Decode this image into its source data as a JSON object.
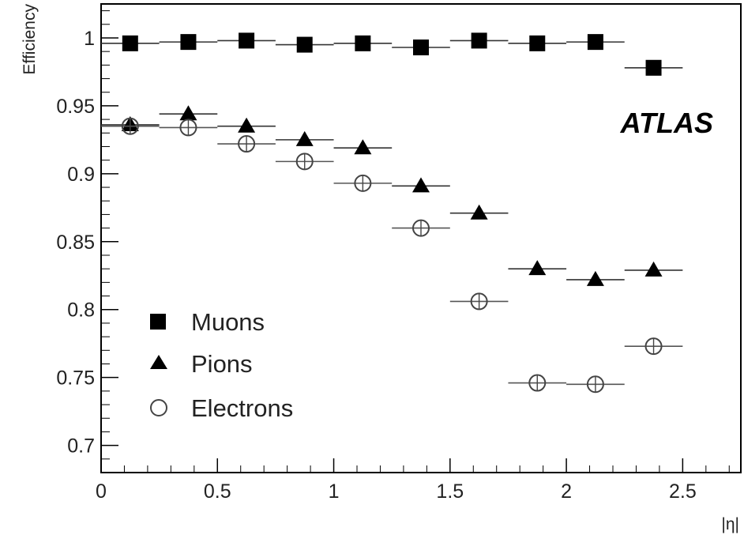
{
  "chart_data": {
    "type": "scatter",
    "title": "",
    "xlabel": "|η|",
    "ylabel": "Efficiency",
    "xlim": [
      0,
      2.75
    ],
    "ylim": [
      0.68,
      1.025
    ],
    "x_ticks": [
      0,
      0.5,
      1,
      1.5,
      2,
      2.5
    ],
    "x_tick_labels": [
      "0",
      "0.5",
      "1",
      "1.5",
      "2",
      "2.5"
    ],
    "y_ticks": [
      0.7,
      0.75,
      0.8,
      0.85,
      0.9,
      0.95,
      1
    ],
    "y_tick_labels": [
      "0.7",
      "0.75",
      "0.8",
      "0.85",
      "0.9",
      "0.95",
      "1"
    ],
    "x": [
      0.125,
      0.375,
      0.625,
      0.875,
      1.125,
      1.375,
      1.625,
      1.875,
      2.125,
      2.375
    ],
    "x_err": 0.125,
    "grid": false,
    "legend_position": "bottom-left",
    "annotation": "ATLAS",
    "series": [
      {
        "name": "Muons",
        "marker": "filled-square",
        "color": "#000000",
        "values": [
          0.996,
          0.997,
          0.998,
          0.995,
          0.996,
          0.993,
          0.998,
          0.996,
          0.997,
          0.978
        ]
      },
      {
        "name": "Pions",
        "marker": "filled-triangle",
        "color": "#000000",
        "values": [
          0.936,
          0.944,
          0.935,
          0.925,
          0.919,
          0.891,
          0.871,
          0.83,
          0.822,
          0.829
        ]
      },
      {
        "name": "Electrons",
        "marker": "open-circle",
        "color": "#444444",
        "values": [
          0.935,
          0.934,
          0.922,
          0.909,
          0.893,
          0.86,
          0.806,
          0.746,
          0.745,
          0.773
        ]
      }
    ]
  }
}
